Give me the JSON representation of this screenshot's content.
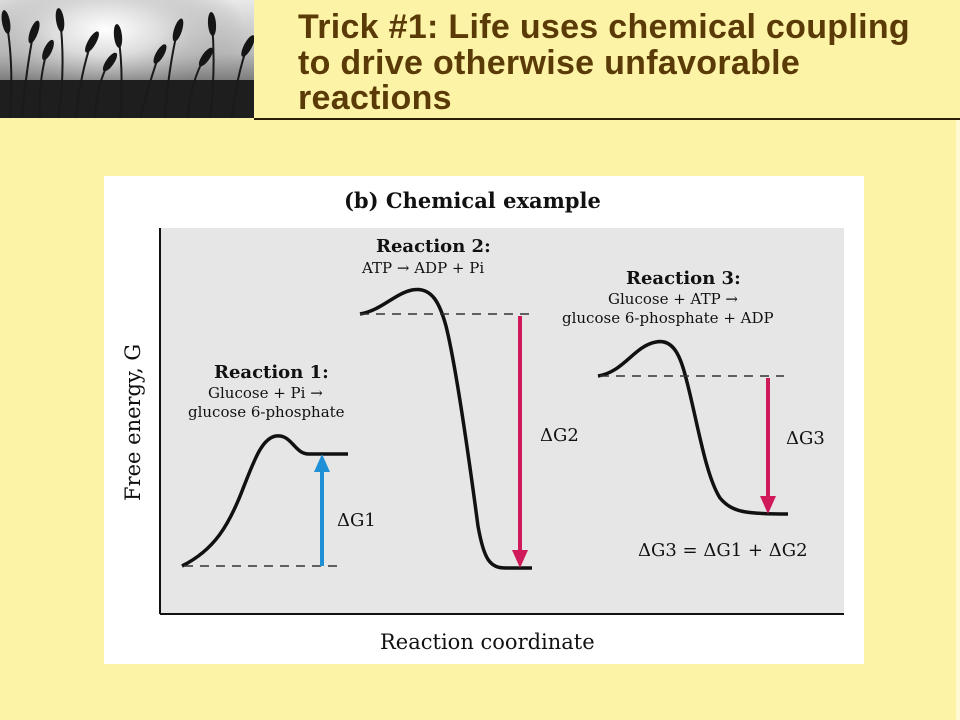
{
  "slide": {
    "title": "Trick #1: Life uses chemical coupling to drive otherwise unfavorable reactions",
    "title_color": "#5a3b08",
    "background_color": "#fdf3a6",
    "photo_description": "wheat-field-photo"
  },
  "figure": {
    "panel_title": "(b) Chemical example",
    "y_axis_label": "Free energy, G",
    "x_axis_label": "Reaction coordinate",
    "panel_background": "#e6e6e6",
    "reaction1": {
      "heading": "Reaction 1:",
      "line1": "Glucose + Pi →",
      "line2": "glucose 6-phosphate",
      "delta_label": "ΔG1",
      "arrow_direction": "up",
      "arrow_color": "#1f8fd6"
    },
    "reaction2": {
      "heading": "Reaction 2:",
      "line1": "ATP → ADP + Pi",
      "delta_label": "ΔG2",
      "arrow_direction": "down",
      "arrow_color": "#d0195a"
    },
    "reaction3": {
      "heading": "Reaction 3:",
      "line1": "Glucose + ATP →",
      "line2": "glucose 6-phosphate + ADP",
      "delta_label": "ΔG3",
      "arrow_direction": "down",
      "arrow_color": "#d0195a"
    },
    "equation": "ΔG3 = ΔG1 + ΔG2"
  }
}
